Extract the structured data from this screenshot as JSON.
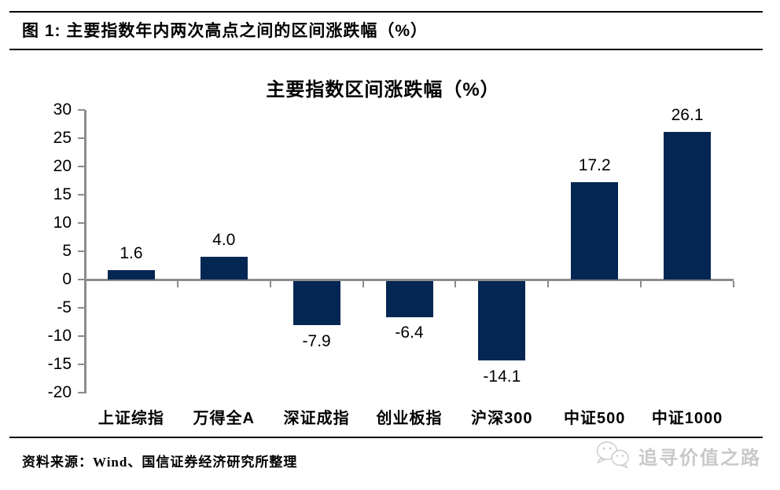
{
  "figure_header": {
    "text": "图 1: 主要指数年内两次高点之间的区间涨跌幅（%）"
  },
  "chart_data": {
    "type": "bar",
    "title": "主要指数区间涨跌幅（%）",
    "categories": [
      "上证综指",
      "万得全A",
      "深证成指",
      "创业板指",
      "沪深300",
      "中证500",
      "中证1000"
    ],
    "values": [
      1.6,
      4.0,
      -7.9,
      -6.4,
      -14.1,
      17.2,
      26.1
    ],
    "value_labels": [
      "1.6",
      "4.0",
      "-7.9",
      "-6.4",
      "-14.1",
      "17.2",
      "26.1"
    ],
    "ytick_labels": [
      "30",
      "25",
      "20",
      "15",
      "10",
      "5",
      "0",
      "-5",
      "-10",
      "-15",
      "-20"
    ],
    "ylim": [
      -20,
      30
    ],
    "ytick_step": 5,
    "xlabel": "",
    "ylabel": "",
    "grid": false,
    "legend": "none",
    "bar_color": "#032652",
    "axis_color": "#8C8C8C"
  },
  "footer": {
    "source": "资料来源：Wind、国信证券经济研究所整理",
    "logo_text": "追寻价值之路"
  }
}
